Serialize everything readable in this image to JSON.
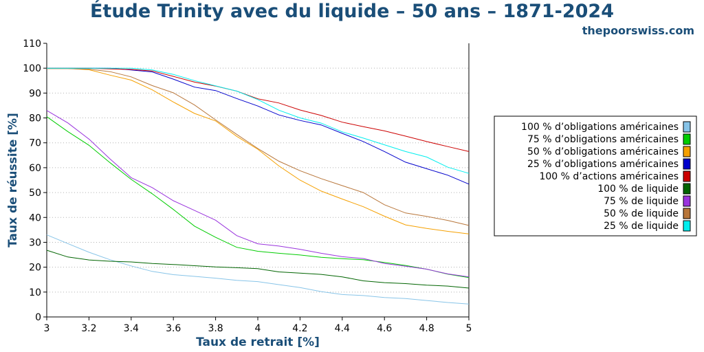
{
  "header": {
    "title": "Étude Trinity avec du liquide – 50 ans – 1871-2024",
    "site": "thepoorswiss.com"
  },
  "chart_data": {
    "type": "line",
    "xlabel": "Taux de retrait [%]",
    "ylabel": "Taux de réussite [%]",
    "xlim": [
      3,
      5
    ],
    "ylim": [
      0,
      110
    ],
    "xticks": [
      "3",
      "3.2",
      "3.4",
      "3.6",
      "3.8",
      "4",
      "4.2",
      "4.4",
      "4.6",
      "4.8",
      "5"
    ],
    "yticks": [
      "0",
      "10",
      "20",
      "30",
      "40",
      "50",
      "60",
      "70",
      "80",
      "90",
      "100",
      "110"
    ],
    "grid": "horizontal-dotted",
    "legend_position": "right",
    "x": [
      3.0,
      3.1,
      3.2,
      3.3,
      3.4,
      3.5,
      3.6,
      3.7,
      3.8,
      3.9,
      4.0,
      4.1,
      4.2,
      4.3,
      4.4,
      4.5,
      4.6,
      4.7,
      4.8,
      4.9,
      5.0
    ],
    "series": [
      {
        "name": "100 % d’obligations américaines",
        "color": "#87c4e8",
        "values": [
          33,
          29.5,
          26,
          23,
          20.5,
          18.3,
          17,
          16.3,
          15.6,
          14.7,
          14.2,
          13,
          11.8,
          10.2,
          9,
          8.6,
          7.8,
          7.4,
          6.6,
          5.8,
          5.2
        ]
      },
      {
        "name": "75 % d’obligations américaines",
        "color": "#00cc00",
        "values": [
          80.5,
          74.5,
          69,
          62,
          55.3,
          49.5,
          43.2,
          36.5,
          32,
          28,
          26.4,
          25.6,
          24.9,
          24,
          23.4,
          23,
          21.9,
          20.7,
          19.2,
          17.2,
          15.8
        ]
      },
      {
        "name": "50 % d’obligations américaines",
        "color": "#f5a000",
        "values": [
          99.9,
          99.9,
          99.4,
          97.2,
          95.2,
          91.3,
          86.4,
          81.8,
          78.8,
          72.6,
          67.4,
          60.7,
          55,
          50.6,
          47.4,
          44.3,
          40.5,
          37,
          35.6,
          34.4,
          33.4
        ]
      },
      {
        "name": "25 % d’obligations américaines",
        "color": "#0000cc",
        "values": [
          100,
          100,
          100,
          100,
          99.3,
          98.5,
          95.6,
          92.4,
          91,
          87.8,
          84.8,
          81.2,
          79,
          77.2,
          73.8,
          70.5,
          66.5,
          62.2,
          59.6,
          57,
          53.4
        ]
      },
      {
        "name": "100 % d’actions américaines",
        "color": "#cc0000",
        "values": [
          100,
          100,
          100,
          99.7,
          99.5,
          98.9,
          96.7,
          94.4,
          92.8,
          90.8,
          87.7,
          86,
          83.2,
          81,
          78.3,
          76.5,
          74.8,
          72.7,
          70.5,
          68.5,
          66.5
        ]
      },
      {
        "name": "100 % de liquide",
        "color": "#006400",
        "values": [
          26.8,
          24.1,
          22.9,
          22.4,
          22.1,
          21.5,
          21.1,
          20.6,
          20.1,
          19.8,
          19.4,
          18.1,
          17.6,
          17.1,
          16.1,
          14.5,
          13.8,
          13.4,
          12.8,
          12.4,
          11.6
        ]
      },
      {
        "name": "75 % de liquide",
        "color": "#9933dd",
        "values": [
          83,
          78,
          71.5,
          63.5,
          56,
          52,
          46.7,
          42.8,
          38.9,
          32.7,
          29.4,
          28.5,
          27.2,
          25.6,
          24.2,
          23.5,
          21.5,
          20.4,
          19.2,
          17.3,
          16.1
        ]
      },
      {
        "name": "50 % de liquide",
        "color": "#b8763a",
        "values": [
          99.8,
          99.8,
          99.6,
          98.6,
          96.5,
          93,
          90.1,
          85.2,
          79.2,
          73.4,
          67.7,
          62.6,
          58.8,
          55.6,
          52.8,
          50,
          45.1,
          41.8,
          40.4,
          38.8,
          36.8
        ]
      },
      {
        "name": "25 % de liquide",
        "color": "#00eeee",
        "values": [
          100,
          100,
          100,
          100,
          100,
          99.3,
          97.5,
          95,
          92.9,
          90.8,
          87.4,
          83.1,
          80,
          77.9,
          74.4,
          71.9,
          69.2,
          66.5,
          64.3,
          60.2,
          57.7
        ]
      }
    ]
  }
}
